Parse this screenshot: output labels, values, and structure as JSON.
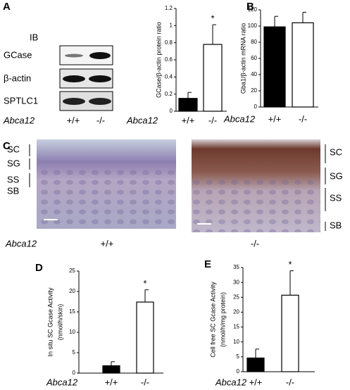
{
  "blot": {
    "panel_label": "A",
    "header": "IB",
    "rows": [
      "GCase",
      "β-actin",
      "SPTLC1"
    ],
    "xlabel": "Abca12",
    "categories": [
      "+/+",
      "-/-"
    ]
  },
  "histology": {
    "panel_label": "C",
    "left_layers": [
      "SC",
      "SG",
      "SS",
      "SB"
    ],
    "right_layers": [
      "SC",
      "SG",
      "SS",
      "SB"
    ],
    "xlabel": "Abca12",
    "categories": [
      "+/+",
      "-/-"
    ]
  },
  "chart_data": [
    {
      "type": "bar",
      "ylabel": [
        "GCase/β-actin protein ratio"
      ],
      "xlabel": "Abca12",
      "categories": [
        "+/+",
        "-/-"
      ],
      "series": [
        {
          "colors": [
            "#000000",
            "#ffffff"
          ],
          "values": [
            0.15,
            0.78
          ],
          "errors": [
            0.07,
            0.23
          ]
        }
      ],
      "annotation": "*",
      "ylim": [
        0,
        1.2
      ],
      "yticks": [
        0,
        0.2,
        0.4,
        0.6,
        0.8,
        1,
        1.2
      ]
    },
    {
      "type": "bar",
      "panel_label": "B",
      "ylabel": [
        "Gba1/β-actin mRNA ratio"
      ],
      "xlabel": "Abca12",
      "categories": [
        "+/+",
        "-/-"
      ],
      "series": [
        {
          "colors": [
            "#000000",
            "#ffffff"
          ],
          "values": [
            99,
            104
          ],
          "errors": [
            13,
            13
          ]
        }
      ],
      "ylim": [
        0,
        120
      ],
      "yticks": [
        0,
        20,
        40,
        60,
        80,
        100,
        120
      ]
    },
    {
      "type": "bar",
      "panel_label": "D",
      "ylabel": [
        "In situ SC Gcase Activity",
        "(nmol/h/skin)"
      ],
      "xlabel": "Abca12",
      "categories": [
        "+/+",
        "-/-"
      ],
      "series": [
        {
          "colors": [
            "#000000",
            "#ffffff"
          ],
          "values": [
            1.8,
            17.4
          ],
          "errors": [
            1.0,
            3.0
          ]
        }
      ],
      "annotation": "*",
      "ylim": [
        0,
        25
      ],
      "yticks": [
        0,
        5,
        10,
        15,
        20,
        25
      ]
    },
    {
      "type": "bar",
      "panel_label": "E",
      "ylabel": [
        "Cell free SC Gcase Activity",
        "(nmol/h/mg protein)"
      ],
      "xlabel": "Abca12",
      "categories": [
        "+/+",
        "-/-"
      ],
      "series": [
        {
          "colors": [
            "#000000",
            "#ffffff"
          ],
          "values": [
            4.6,
            25.7
          ],
          "errors": [
            3.0,
            8.2
          ]
        }
      ],
      "annotation": "*",
      "ylim": [
        0,
        35
      ],
      "yticks": [
        0,
        5,
        10,
        15,
        20,
        25,
        30,
        35
      ]
    }
  ]
}
